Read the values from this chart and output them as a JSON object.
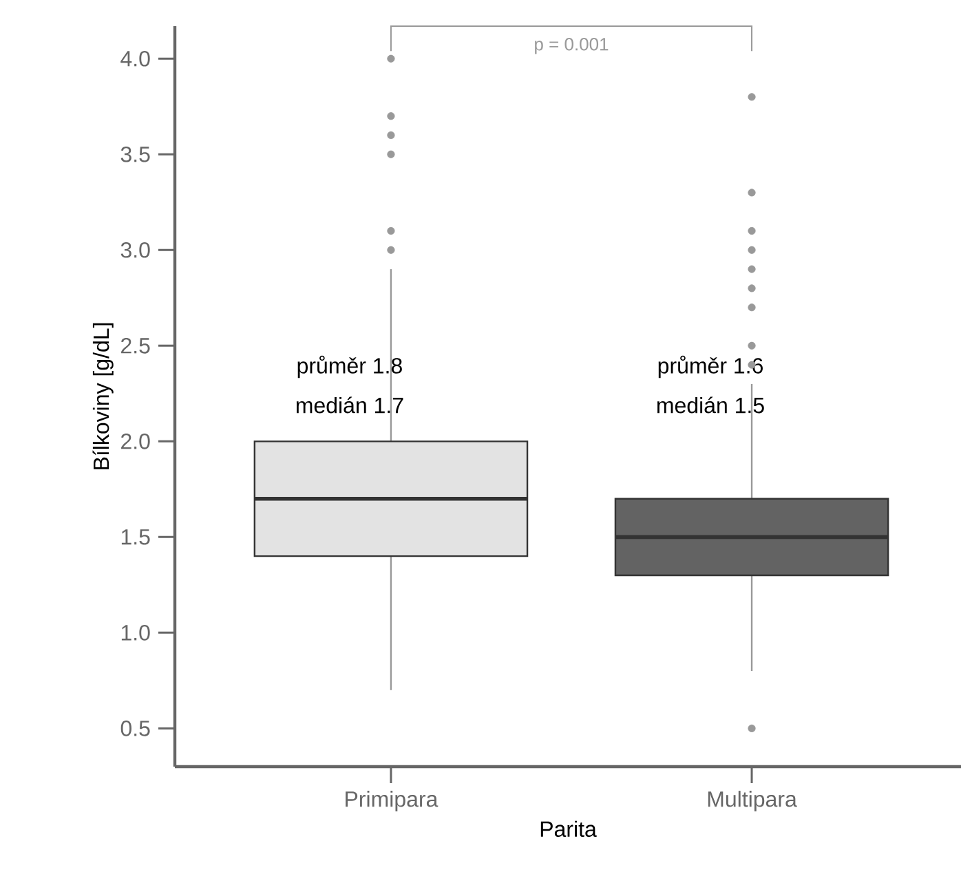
{
  "chart_data": {
    "type": "box",
    "xlabel": "Parita",
    "ylabel": "Bílkoviny [g/dL]",
    "categories": [
      "Primipara",
      "Multipara"
    ],
    "colors": [
      "#e3e3e3",
      "#636363"
    ],
    "boxes": [
      {
        "low": 0.7,
        "q1": 1.4,
        "median": 1.7,
        "q3": 2.0,
        "high": 2.9,
        "outliers": [
          3.0,
          3.1,
          3.5,
          3.6,
          3.7,
          4.0
        ]
      },
      {
        "low": 0.8,
        "q1": 1.3,
        "median": 1.5,
        "q3": 1.7,
        "high": 2.3,
        "outliers": [
          0.5,
          2.4,
          2.5,
          2.7,
          2.8,
          2.9,
          3.0,
          3.1,
          3.3,
          3.8
        ]
      }
    ],
    "ylim": [
      0.3,
      4.17
    ],
    "yticks": [
      0.5,
      {
        "value": 1.0,
        "label": "1.0"
      },
      1.5,
      {
        "value": 2.0,
        "label": "2.0"
      },
      2.5,
      {
        "value": 3.0,
        "label": "3.0"
      },
      3.5,
      {
        "value": 4.0,
        "label": "4.0"
      }
    ],
    "marker": "circle",
    "grid": false,
    "annotations": [
      "průměr 1.8",
      "medián 1.7",
      "průměr 1.6",
      "medián 1.5",
      "p = 0.001"
    ]
  }
}
